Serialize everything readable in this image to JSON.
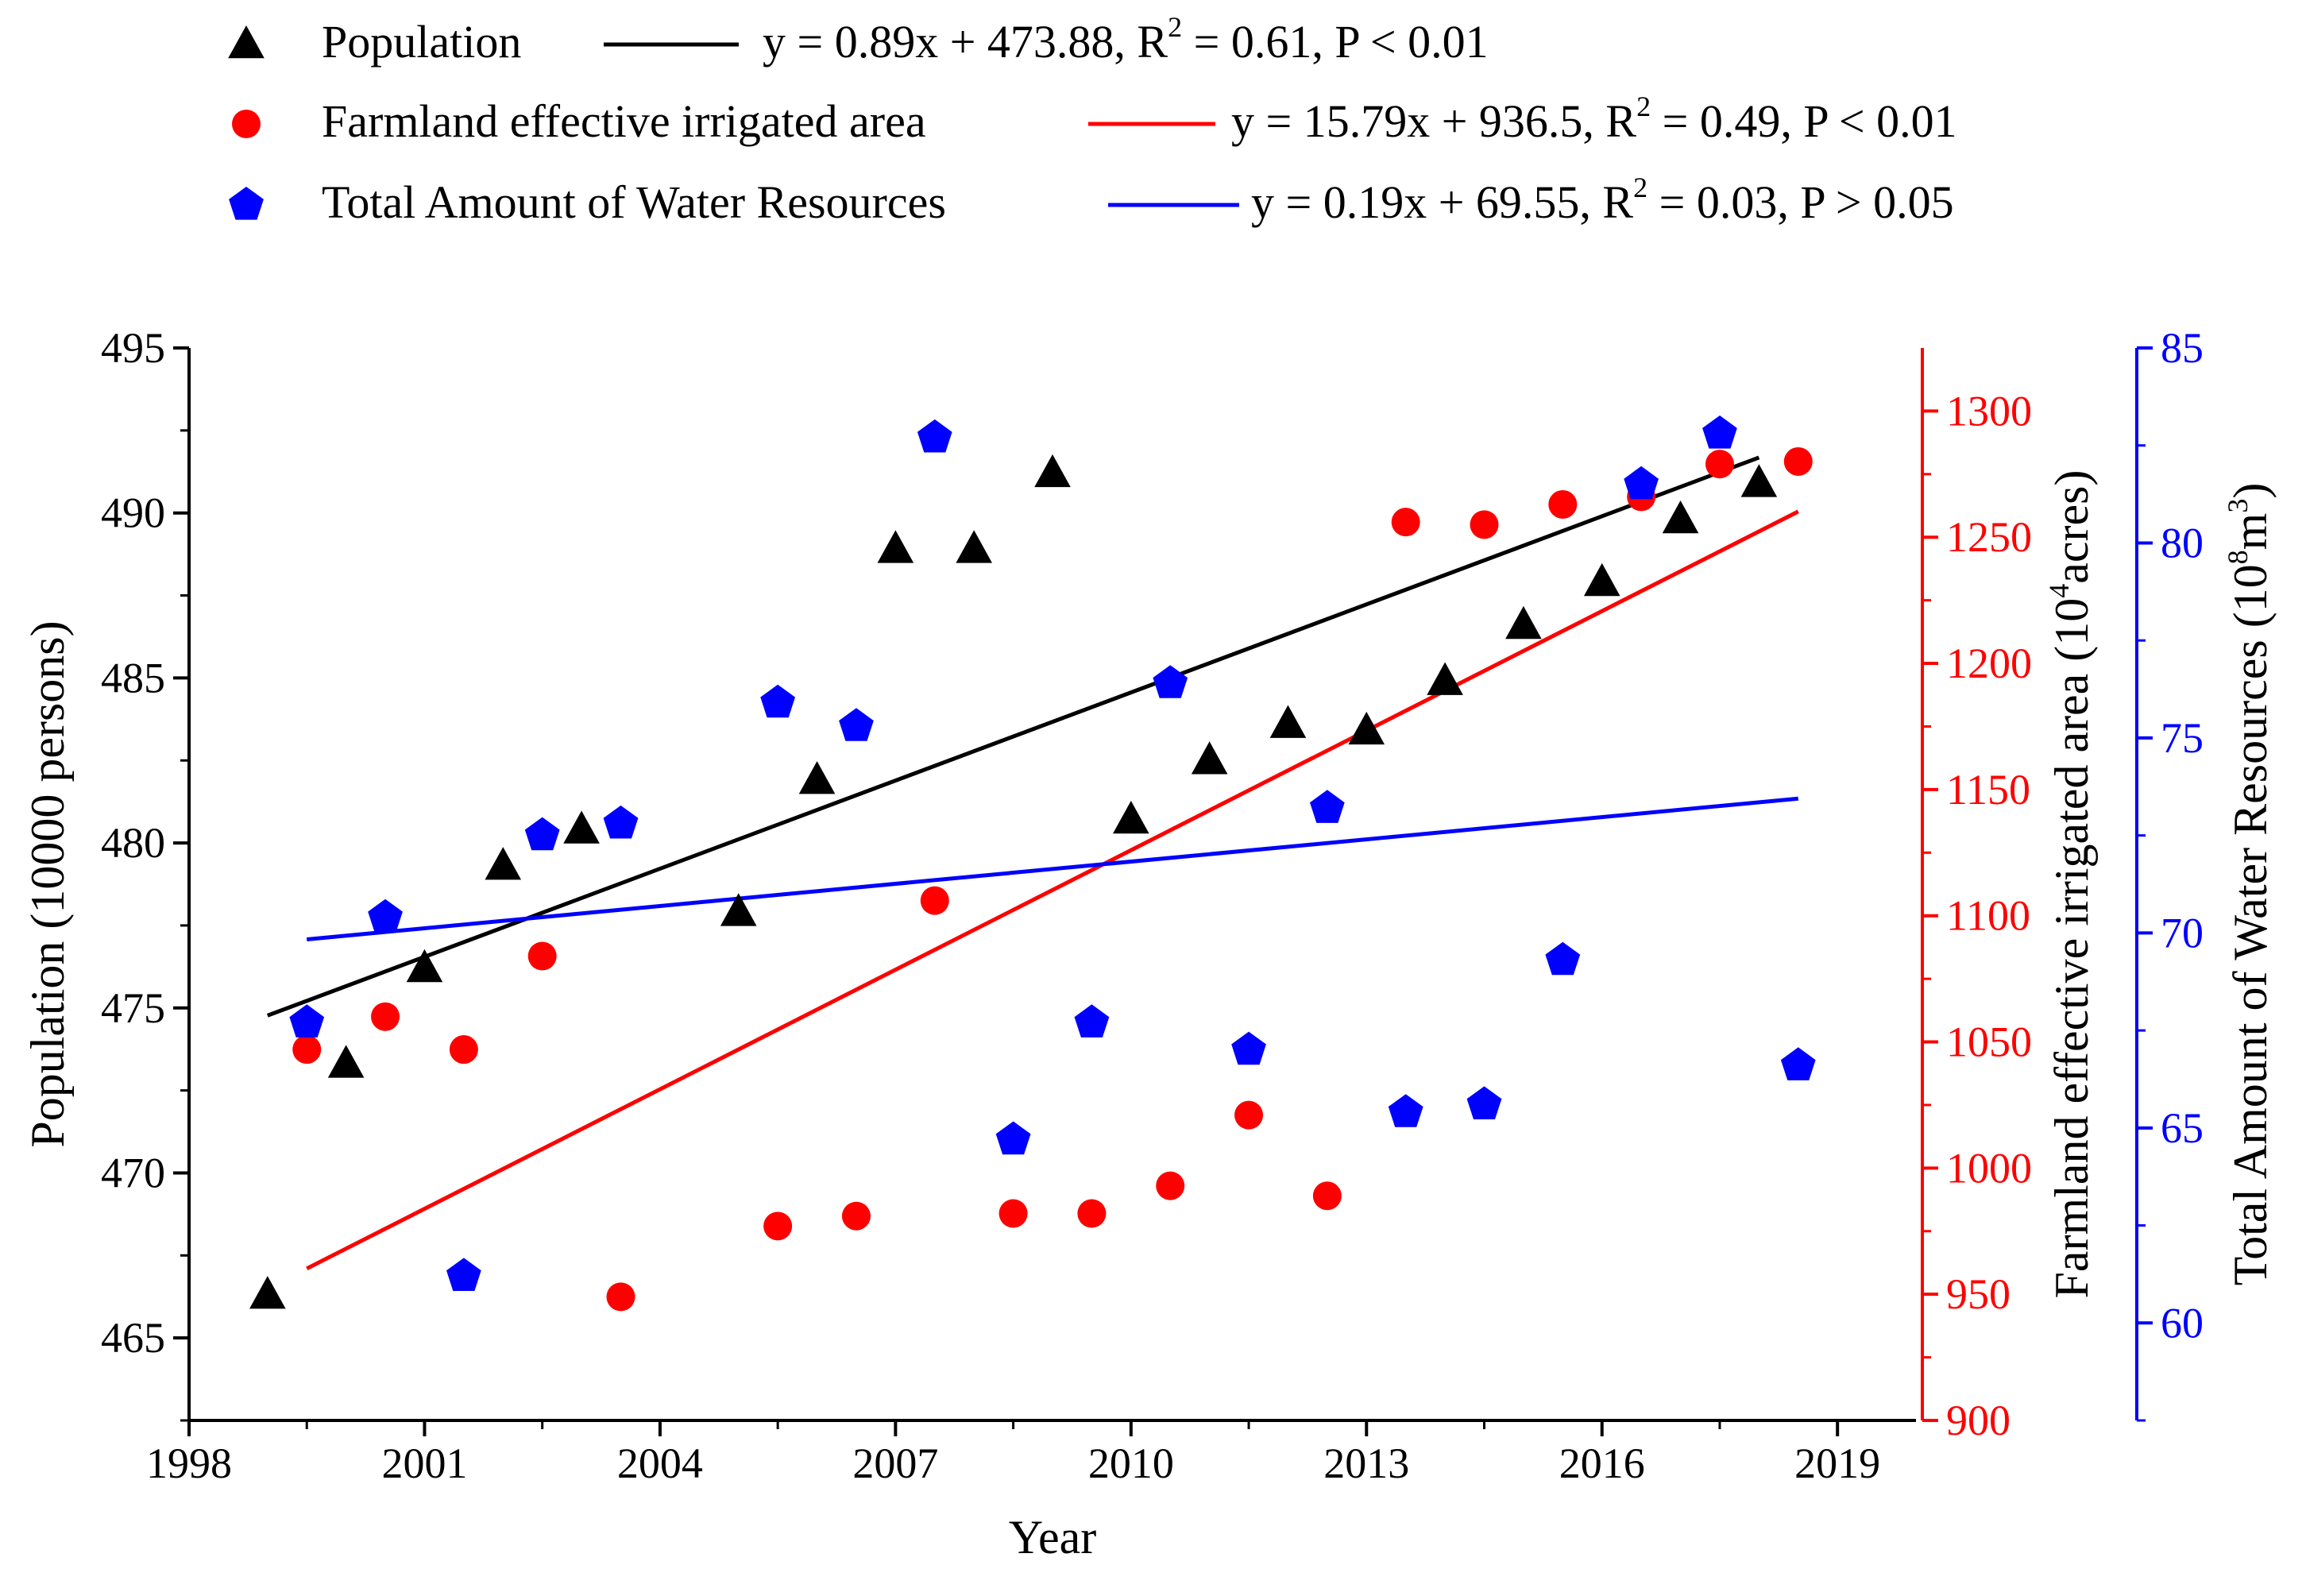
{
  "chart_data": {
    "type": "scatter",
    "title": "",
    "xlabel": "Year",
    "xlim": [
      1998,
      2020
    ],
    "x_ticks": [
      "1998",
      "2001",
      "2004",
      "2007",
      "2010",
      "2013",
      "2016",
      "2019"
    ],
    "axes": {
      "left": {
        "label": "Population (10000 persons)",
        "ylim": [
          462.5,
          495
        ],
        "ticks": [
          "465",
          "470",
          "475",
          "480",
          "485",
          "490",
          "495"
        ],
        "color": "#000000"
      },
      "right_inner": {
        "label_main": "Farmland effective irrigated area (10",
        "label_sup": "4",
        "label_end": "acres)",
        "ylim": [
          900,
          1325
        ],
        "ticks": [
          "950",
          "1000",
          "1050",
          "1100",
          "1150",
          "1200",
          "1250",
          "1300"
        ],
        "color": "#ff0000"
      },
      "right_outer": {
        "label_main": "Total Amount of Water Resources (10",
        "label_sup1": "8",
        "label_mid": "m",
        "label_sup2": "3",
        "label_end": ")",
        "ylim": [
          57.5,
          85
        ],
        "ticks": [
          "60",
          "65",
          "70",
          "75",
          "80",
          "85"
        ],
        "color": "#0000ff"
      }
    },
    "series": [
      {
        "name": "Population",
        "axis": "left",
        "marker": "triangle",
        "color": "#000000",
        "x": [
          1999,
          2000,
          2001,
          2002,
          2003,
          2005,
          2006,
          2007,
          2008,
          2009,
          2010,
          2011,
          2012,
          2013,
          2014,
          2015,
          2016,
          2017,
          2018
        ],
        "y": [
          466.3,
          473.3,
          476.2,
          479.3,
          480.4,
          477.9,
          481.9,
          488.9,
          488.9,
          491.2,
          480.7,
          482.5,
          483.6,
          483.4,
          484.9,
          486.6,
          487.9,
          489.8,
          490.9
        ],
        "fit": {
          "slope": 0.89,
          "intercept": 473.88,
          "x_start": 1999,
          "x_end": 2018
        },
        "legend_equation": "y = 0.89x + 473.88, R",
        "legend_sup": "2",
        "legend_stats": " = 0.61, P < 0.01"
      },
      {
        "name": "Farmland effective irrigated area",
        "axis": "right_inner",
        "marker": "circle",
        "color": "#ff0000",
        "x": [
          1999.5,
          2000.5,
          2001.5,
          2002.5,
          2003.5,
          2005.5,
          2006.5,
          2007.5,
          2008.5,
          2009.5,
          2010.5,
          2011.5,
          2012.5,
          2013.5,
          2014.5,
          2015.5,
          2016.5,
          2017.5,
          2018.5
        ],
        "y": [
          1047,
          1060,
          1047,
          1084,
          949,
          977,
          981,
          1106,
          982,
          982,
          993,
          1021,
          989,
          1256,
          1255,
          1263,
          1266,
          1279,
          1280
        ],
        "fit": {
          "slope": 15.79,
          "intercept": 936.5,
          "x_start": 1999.5,
          "x_end": 2018.5
        },
        "legend_equation": "y = 15.79x + 936.5, R",
        "legend_sup": "2",
        "legend_stats": " = 0.49, P < 0.01"
      },
      {
        "name": "Total Amount of Water Resources",
        "axis": "right_outer",
        "marker": "pentagon",
        "color": "#0000ff",
        "x": [
          1999.5,
          2000.5,
          2001.5,
          2002.5,
          2003.5,
          2005.5,
          2006.5,
          2007.5,
          2008.5,
          2009.5,
          2010.5,
          2011.5,
          2012.5,
          2013.5,
          2014.5,
          2015.5,
          2016.5,
          2017.5,
          2018.5
        ],
        "y": [
          67.7,
          70.4,
          61.2,
          72.5,
          72.8,
          75.9,
          75.3,
          82.7,
          64.7,
          67.7,
          76.4,
          67.0,
          73.2,
          65.4,
          65.6,
          69.3,
          81.5,
          82.8,
          66.6
        ],
        "fit": {
          "slope": 0.19,
          "intercept": 69.55,
          "x_start": 1999.5,
          "x_end": 2018.5
        },
        "legend_equation": "y = 0.19x + 69.55, R",
        "legend_sup": "2",
        "legend_stats": " = 0.03, P > 0.05"
      }
    ],
    "legend_position": "top"
  }
}
